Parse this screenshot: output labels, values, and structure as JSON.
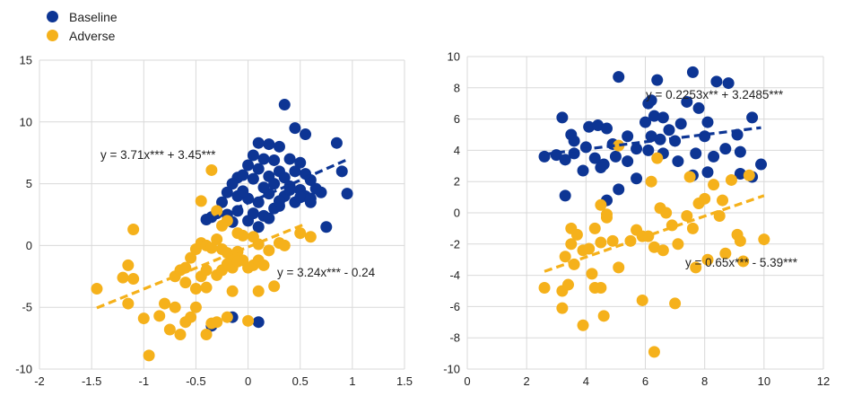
{
  "legend": [
    {
      "name": "Baseline",
      "color": "#0d3594"
    },
    {
      "name": "Adverse",
      "color": "#f5b11b"
    }
  ],
  "chart_data": [
    {
      "type": "scatter",
      "xlim": [
        -2,
        1.5
      ],
      "ylim": [
        -10,
        15
      ],
      "xticks": [
        "-2",
        "-1.5",
        "-1",
        "-0.5",
        "0",
        "0.5",
        "1",
        "1.5"
      ],
      "yticks": [
        "-10",
        "-5",
        "0",
        "5",
        "10",
        "15"
      ],
      "grid": true,
      "series": [
        {
          "name": "Baseline",
          "color": "#0d3594",
          "trendline": {
            "x": [
              -0.35,
              0.95
            ],
            "y": [
              2.15,
              6.95
            ]
          },
          "points": [
            [
              0.35,
              11.4
            ],
            [
              0.45,
              9.5
            ],
            [
              0.55,
              9.0
            ],
            [
              0.85,
              8.3
            ],
            [
              0.95,
              4.2
            ],
            [
              0.9,
              6.0
            ],
            [
              0.75,
              1.5
            ],
            [
              0.7,
              4.3
            ],
            [
              0.1,
              8.3
            ],
            [
              0.2,
              8.2
            ],
            [
              0.3,
              8.0
            ],
            [
              0.05,
              7.3
            ],
            [
              0.15,
              7.0
            ],
            [
              0.25,
              6.9
            ],
            [
              0.4,
              7.0
            ],
            [
              0.5,
              6.7
            ],
            [
              0.0,
              6.5
            ],
            [
              0.1,
              6.2
            ],
            [
              0.3,
              6.0
            ],
            [
              0.45,
              6.0
            ],
            [
              0.55,
              5.8
            ],
            [
              0.6,
              5.3
            ],
            [
              0.35,
              5.5
            ],
            [
              0.2,
              5.6
            ],
            [
              -0.1,
              5.5
            ],
            [
              -0.05,
              5.7
            ],
            [
              0.05,
              5.4
            ],
            [
              0.25,
              5.0
            ],
            [
              0.4,
              4.8
            ],
            [
              0.5,
              4.5
            ],
            [
              0.55,
              4.0
            ],
            [
              0.6,
              3.5
            ],
            [
              -0.15,
              5.0
            ],
            [
              -0.2,
              4.3
            ],
            [
              -0.1,
              4.0
            ],
            [
              0.0,
              3.8
            ],
            [
              0.1,
              3.5
            ],
            [
              0.2,
              4.2
            ],
            [
              0.3,
              3.2
            ],
            [
              0.35,
              4.0
            ],
            [
              -0.25,
              3.5
            ],
            [
              -0.3,
              2.6
            ],
            [
              -0.2,
              2.5
            ],
            [
              -0.1,
              2.8
            ],
            [
              0.05,
              2.6
            ],
            [
              0.15,
              2.4
            ],
            [
              0.25,
              3.0
            ],
            [
              0.45,
              3.5
            ],
            [
              -0.35,
              2.3
            ],
            [
              -0.4,
              2.1
            ],
            [
              -0.15,
              1.9
            ],
            [
              0.0,
              2.0
            ],
            [
              0.1,
              1.5
            ],
            [
              0.2,
              2.2
            ],
            [
              0.3,
              3.6
            ],
            [
              0.4,
              4.5
            ],
            [
              0.5,
              3.9
            ],
            [
              0.6,
              3.8
            ],
            [
              0.65,
              4.6
            ],
            [
              0.15,
              4.7
            ],
            [
              -0.05,
              4.4
            ],
            [
              0.1,
              -6.2
            ],
            [
              -0.15,
              -5.8
            ],
            [
              -0.35,
              -6.5
            ]
          ]
        },
        {
          "name": "Adverse",
          "color": "#f5b11b",
          "trendline": {
            "x": [
              -1.45,
              0.55
            ],
            "y": [
              -5.05,
              1.75
            ]
          },
          "points": [
            [
              -1.45,
              -3.5
            ],
            [
              -1.15,
              -1.6
            ],
            [
              -1.1,
              1.3
            ],
            [
              -1.2,
              -2.6
            ],
            [
              -1.1,
              -2.7
            ],
            [
              -1.15,
              -4.7
            ],
            [
              -1.0,
              -5.9
            ],
            [
              -0.95,
              -8.9
            ],
            [
              -0.85,
              -5.7
            ],
            [
              -0.8,
              -4.7
            ],
            [
              -0.75,
              -6.8
            ],
            [
              -0.7,
              -5.0
            ],
            [
              -0.65,
              -7.2
            ],
            [
              -0.6,
              -6.2
            ],
            [
              -0.55,
              -5.8
            ],
            [
              -0.5,
              -5.0
            ],
            [
              -0.4,
              -7.2
            ],
            [
              -0.35,
              -6.3
            ],
            [
              -0.3,
              -6.2
            ],
            [
              -0.2,
              -5.8
            ],
            [
              -0.7,
              -2.5
            ],
            [
              -0.65,
              -2.0
            ],
            [
              -0.6,
              -1.8
            ],
            [
              -0.55,
              -1.0
            ],
            [
              -0.5,
              -0.3
            ],
            [
              -0.45,
              0.2
            ],
            [
              -0.4,
              0.0
            ],
            [
              -0.35,
              -0.2
            ],
            [
              -0.3,
              0.5
            ],
            [
              -0.25,
              -0.3
            ],
            [
              -0.2,
              -0.6
            ],
            [
              -0.15,
              -0.9
            ],
            [
              -0.1,
              -0.5
            ],
            [
              -0.05,
              -1.2
            ],
            [
              0.0,
              -1.8
            ],
            [
              0.05,
              -1.6
            ],
            [
              0.1,
              -1.2
            ],
            [
              0.15,
              -1.6
            ],
            [
              -0.6,
              -3.0
            ],
            [
              -0.5,
              -3.5
            ],
            [
              -0.45,
              -2.5
            ],
            [
              -0.4,
              -2.0
            ],
            [
              -0.3,
              -2.4
            ],
            [
              -0.25,
              -2.0
            ],
            [
              -0.2,
              -1.5
            ],
            [
              -0.15,
              -1.8
            ],
            [
              -0.1,
              -1.3
            ],
            [
              0.05,
              0.7
            ],
            [
              0.1,
              0.1
            ],
            [
              0.2,
              -0.4
            ],
            [
              0.3,
              0.2
            ],
            [
              0.35,
              0.0
            ],
            [
              0.5,
              1.0
            ],
            [
              0.6,
              0.7
            ],
            [
              -0.05,
              0.8
            ],
            [
              -0.1,
              1.0
            ],
            [
              -0.2,
              2.0
            ],
            [
              -0.25,
              1.6
            ],
            [
              -0.3,
              2.8
            ],
            [
              -0.35,
              6.1
            ],
            [
              -0.45,
              3.6
            ],
            [
              0.1,
              -3.7
            ],
            [
              -0.15,
              -3.7
            ],
            [
              -0.4,
              -3.4
            ],
            [
              0.25,
              -3.3
            ],
            [
              0.0,
              -6.1
            ]
          ]
        }
      ],
      "annotations": [
        "y = 3.71x*** + 3.45***",
        "y = 3.24x*** - 0.24"
      ]
    },
    {
      "type": "scatter",
      "xlim": [
        0,
        12
      ],
      "ylim": [
        -10,
        10
      ],
      "xticks": [
        "0",
        "2",
        "4",
        "6",
        "8",
        "10",
        "12"
      ],
      "yticks": [
        "-10",
        "-8",
        "-6",
        "-4",
        "-2",
        "0",
        "2",
        "4",
        "6",
        "8",
        "10"
      ],
      "grid": true,
      "series": [
        {
          "name": "Baseline",
          "color": "#0d3594",
          "trendline": {
            "x": [
              2.6,
              9.9
            ],
            "y": [
              3.75,
              5.45
            ]
          },
          "points": [
            [
              5.1,
              8.7
            ],
            [
              6.4,
              8.5
            ],
            [
              7.6,
              9.0
            ],
            [
              8.4,
              8.4
            ],
            [
              8.8,
              8.3
            ],
            [
              6.1,
              7.0
            ],
            [
              7.4,
              7.1
            ],
            [
              7.8,
              6.7
            ],
            [
              3.2,
              6.1
            ],
            [
              4.1,
              5.5
            ],
            [
              4.4,
              5.6
            ],
            [
              4.7,
              5.4
            ],
            [
              6.0,
              5.8
            ],
            [
              6.3,
              6.2
            ],
            [
              6.6,
              6.1
            ],
            [
              7.2,
              5.7
            ],
            [
              8.1,
              5.8
            ],
            [
              9.6,
              6.1
            ],
            [
              3.5,
              5.0
            ],
            [
              3.6,
              4.6
            ],
            [
              4.0,
              4.2
            ],
            [
              4.9,
              4.4
            ],
            [
              5.4,
              4.9
            ],
            [
              6.2,
              4.9
            ],
            [
              6.5,
              4.7
            ],
            [
              6.8,
              5.3
            ],
            [
              7.0,
              4.6
            ],
            [
              8.0,
              4.9
            ],
            [
              9.1,
              5.0
            ],
            [
              2.6,
              3.6
            ],
            [
              3.0,
              3.7
            ],
            [
              3.3,
              3.4
            ],
            [
              3.6,
              3.8
            ],
            [
              4.3,
              3.5
            ],
            [
              4.6,
              3.1
            ],
            [
              5.0,
              3.6
            ],
            [
              5.4,
              3.3
            ],
            [
              5.7,
              4.1
            ],
            [
              6.1,
              4.0
            ],
            [
              6.6,
              3.8
            ],
            [
              7.1,
              3.3
            ],
            [
              7.7,
              3.8
            ],
            [
              8.3,
              3.6
            ],
            [
              8.7,
              4.1
            ],
            [
              9.2,
              3.9
            ],
            [
              9.9,
              3.1
            ],
            [
              3.9,
              2.7
            ],
            [
              4.5,
              2.9
            ],
            [
              5.1,
              1.5
            ],
            [
              5.7,
              2.2
            ],
            [
              7.6,
              2.4
            ],
            [
              8.1,
              2.6
            ],
            [
              9.2,
              2.5
            ],
            [
              9.6,
              2.3
            ],
            [
              3.3,
              1.1
            ],
            [
              4.7,
              0.8
            ],
            [
              6.2,
              7.2
            ]
          ]
        },
        {
          "name": "Adverse",
          "color": "#f5b11b",
          "trendline": {
            "x": [
              2.6,
              10.0
            ],
            "y": [
              -3.75,
              1.1
            ]
          },
          "points": [
            [
              2.6,
              -4.8
            ],
            [
              3.2,
              -5.0
            ],
            [
              3.4,
              -4.6
            ],
            [
              3.2,
              -6.1
            ],
            [
              3.9,
              -7.2
            ],
            [
              4.3,
              -4.8
            ],
            [
              4.5,
              -4.8
            ],
            [
              4.6,
              -6.6
            ],
            [
              3.5,
              -1.0
            ],
            [
              3.7,
              -1.4
            ],
            [
              3.5,
              -2.0
            ],
            [
              3.9,
              -2.4
            ],
            [
              4.1,
              -2.3
            ],
            [
              4.3,
              -1.0
            ],
            [
              4.5,
              -1.9
            ],
            [
              4.7,
              -0.3
            ],
            [
              3.3,
              -2.8
            ],
            [
              3.6,
              -3.3
            ],
            [
              4.2,
              -3.9
            ],
            [
              4.9,
              -1.8
            ],
            [
              5.1,
              -3.5
            ],
            [
              5.5,
              -1.8
            ],
            [
              5.7,
              -1.1
            ],
            [
              5.9,
              -1.5
            ],
            [
              4.5,
              0.5
            ],
            [
              4.7,
              -0.1
            ],
            [
              5.1,
              4.3
            ],
            [
              6.2,
              2.0
            ],
            [
              6.4,
              3.5
            ],
            [
              6.5,
              0.3
            ],
            [
              6.7,
              0.0
            ],
            [
              6.9,
              -0.8
            ],
            [
              6.3,
              -2.2
            ],
            [
              6.1,
              -1.5
            ],
            [
              6.6,
              -2.4
            ],
            [
              7.1,
              -2.0
            ],
            [
              7.5,
              2.3
            ],
            [
              7.8,
              0.6
            ],
            [
              7.6,
              -1.0
            ],
            [
              7.4,
              -0.2
            ],
            [
              8.0,
              0.9
            ],
            [
              8.3,
              1.8
            ],
            [
              8.5,
              -0.2
            ],
            [
              8.7,
              -2.6
            ],
            [
              8.9,
              2.1
            ],
            [
              9.1,
              -1.4
            ],
            [
              9.2,
              -1.8
            ],
            [
              9.5,
              2.4
            ],
            [
              10.0,
              -1.7
            ],
            [
              7.7,
              -3.5
            ],
            [
              8.1,
              -3.0
            ],
            [
              8.6,
              0.8
            ],
            [
              9.3,
              -3.1
            ],
            [
              5.9,
              -5.6
            ],
            [
              7.0,
              -5.8
            ],
            [
              6.3,
              -8.9
            ]
          ]
        }
      ],
      "annotations": [
        "y = 0.2253x** + 3.2485***",
        "y = 0.65x*** - 5.39***"
      ]
    }
  ]
}
